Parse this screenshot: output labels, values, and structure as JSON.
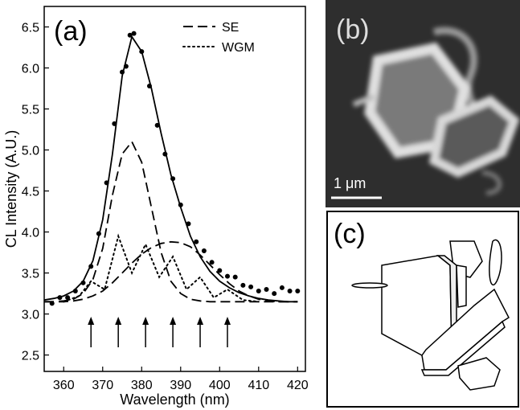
{
  "chart_data": {
    "type": "line",
    "label": "(a)",
    "x_label": "Wavelength (nm)",
    "y_label": "CL Intensity (A.U.)",
    "xlim": [
      355,
      422
    ],
    "ylim": [
      2.3,
      6.75
    ],
    "xticks": [
      360,
      370,
      380,
      390,
      400,
      410,
      420
    ],
    "yticks": [
      2.5,
      {
        "value": 3,
        "label": "3.0"
      },
      3.5,
      {
        "value": 4,
        "label": "4.0"
      },
      4.5,
      {
        "value": 5,
        "label": "5.0"
      },
      5.5,
      {
        "value": 6,
        "label": "6.0"
      },
      6.5
    ],
    "series": [
      {
        "style": "solid",
        "color": "#000",
        "x": [
          355,
          357.5,
          360,
          362.5,
          365,
          367.5,
          370,
          372.5,
          375,
          377.5,
          380,
          382.5,
          385,
          387.5,
          390,
          392.5,
          395,
          397.5,
          400,
          402.5,
          405,
          407.5,
          410,
          412.5,
          415,
          417.5,
          420
        ],
        "values": [
          3.17,
          3.19,
          3.22,
          3.28,
          3.4,
          3.65,
          4.15,
          4.95,
          5.9,
          6.38,
          6.2,
          5.75,
          5.2,
          4.7,
          4.3,
          3.95,
          3.7,
          3.52,
          3.4,
          3.32,
          3.26,
          3.22,
          3.19,
          3.17,
          3.16,
          3.15,
          3.15
        ]
      },
      {
        "name": "SE",
        "style": "dash",
        "color": "#000",
        "x": [
          355,
          357.5,
          360,
          362.5,
          365,
          367.5,
          370,
          372.5,
          375,
          377.5,
          380,
          382.5,
          385,
          387.5,
          390,
          392.5,
          395,
          397.5,
          400,
          402.5,
          405,
          407.5,
          410,
          412.5,
          415,
          417.5,
          420
        ],
        "values": [
          3.15,
          3.15,
          3.16,
          3.18,
          3.25,
          3.42,
          3.8,
          4.45,
          4.95,
          5.1,
          4.85,
          4.3,
          3.75,
          3.4,
          3.25,
          3.18,
          3.16,
          3.15,
          3.15,
          3.15,
          3.15,
          3.15,
          3.15,
          3.15,
          3.15,
          3.15,
          3.15
        ]
      },
      {
        "style": "dash",
        "color": "#000",
        "x": [
          355,
          357.5,
          360,
          362.5,
          365,
          367.5,
          370,
          372.5,
          375,
          377.5,
          380,
          382.5,
          385,
          387.5,
          390,
          392.5,
          395,
          397.5,
          400,
          402.5,
          405,
          407.5,
          410,
          412.5,
          415,
          417.5,
          420
        ],
        "values": [
          3.15,
          3.15,
          3.15,
          3.16,
          3.18,
          3.22,
          3.28,
          3.38,
          3.5,
          3.62,
          3.73,
          3.81,
          3.86,
          3.88,
          3.87,
          3.82,
          3.72,
          3.6,
          3.48,
          3.37,
          3.28,
          3.22,
          3.18,
          3.16,
          3.15,
          3.15,
          3.15
        ]
      },
      {
        "name": "WGM",
        "style": "dot",
        "color": "#000",
        "x": [
          360,
          364,
          367,
          370.5,
          374,
          377.5,
          381,
          384.5,
          388,
          391.5,
          395,
          398.5,
          402,
          406,
          410
        ],
        "values": [
          3.15,
          3.22,
          3.4,
          3.3,
          3.95,
          3.5,
          3.85,
          3.45,
          3.7,
          3.3,
          3.45,
          3.2,
          3.3,
          3.17,
          3.15
        ]
      },
      {
        "style": "marker",
        "color": "#000",
        "x": [
          357,
          359,
          361,
          363,
          365,
          367,
          369,
          371,
          373,
          375,
          376,
          377,
          378,
          380,
          382,
          384,
          386,
          388,
          390,
          392,
          394,
          396,
          398,
          400,
          402,
          404,
          406,
          408,
          410,
          412,
          414,
          416,
          418,
          420
        ],
        "values": [
          3.13,
          3.2,
          3.2,
          3.28,
          3.38,
          3.58,
          3.98,
          4.6,
          5.32,
          5.95,
          6.02,
          6.4,
          6.42,
          6.2,
          5.78,
          5.3,
          4.95,
          4.65,
          4.33,
          4.1,
          3.88,
          3.77,
          3.63,
          3.53,
          3.46,
          3.45,
          3.35,
          3.33,
          3.28,
          3.3,
          3.25,
          3.32,
          3.28,
          3.28
        ]
      }
    ],
    "arrows_x": [
      367,
      374,
      381,
      388,
      395,
      402
    ]
  },
  "panels": {
    "b": {
      "label": "(b)",
      "scale_bar": "1 μm"
    },
    "c": {
      "label": "(c)"
    }
  }
}
